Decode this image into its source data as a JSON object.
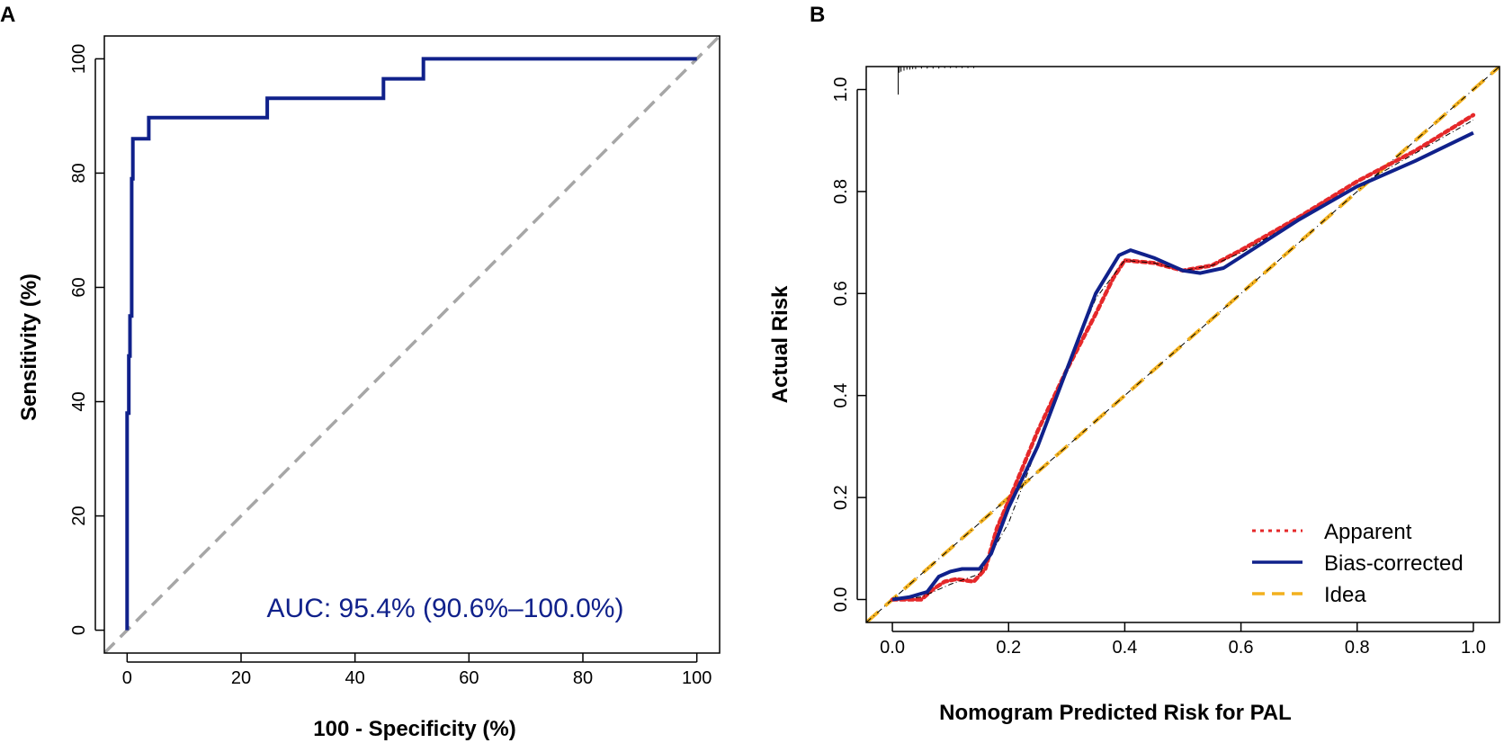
{
  "colors": {
    "roc": "#10218b",
    "diagonal": "#a6a6a6",
    "apparent": "#e5282a",
    "bias_corrected": "#10218b",
    "ideal": "#f2b01e",
    "axis": "#000000"
  },
  "chart_data": [
    {
      "panel": "A",
      "type": "line",
      "subtype": "roc",
      "xlabel": "100 - Specificity (%)",
      "ylabel": "Sensitivity (%)",
      "xlim": [
        -4,
        104
      ],
      "ylim": [
        -4,
        104
      ],
      "xticks": [
        "0",
        "20",
        "40",
        "60",
        "80",
        "100"
      ],
      "yticks": [
        "0",
        "20",
        "40",
        "60",
        "80",
        "100"
      ],
      "annotation": "AUC: 95.4% (90.6%–100.0%)",
      "series": [
        {
          "name": "ROC",
          "x": [
            0,
            0,
            0.3,
            0.3,
            0.5,
            0.5,
            0.8,
            0.8,
            1,
            1,
            1,
            3.8,
            3.8,
            24.6,
            24.6,
            45,
            45,
            52,
            52,
            100
          ],
          "y": [
            0,
            38,
            38,
            48,
            48,
            55,
            55,
            79,
            79,
            82,
            86,
            86,
            89.7,
            89.7,
            93.1,
            93.1,
            96.5,
            96.5,
            100,
            100
          ]
        },
        {
          "name": "Reference",
          "x": [
            -4,
            104
          ],
          "y": [
            -4,
            104
          ]
        }
      ]
    },
    {
      "panel": "B",
      "type": "line",
      "subtype": "calibration",
      "xlabel": "Nomogram Predicted Risk for PAL",
      "ylabel": "Actual Risk",
      "xlim": [
        -0.045,
        1.045
      ],
      "ylim": [
        -0.045,
        1.045
      ],
      "xticks": [
        "0.0",
        "0.2",
        "0.4",
        "0.6",
        "0.8",
        "1.0"
      ],
      "yticks": [
        "0.0",
        "0.2",
        "0.4",
        "0.6",
        "0.8",
        "1.0"
      ],
      "legend_position": "bottom-right",
      "legend": [
        "Apparent",
        "Bias-corrected",
        "Idea"
      ],
      "series": [
        {
          "name": "Apparent",
          "x": [
            0.0,
            0.05,
            0.07,
            0.09,
            0.11,
            0.14,
            0.16,
            0.18,
            0.21,
            0.25,
            0.3,
            0.35,
            0.38,
            0.4,
            0.45,
            0.5,
            0.55,
            0.6,
            0.7,
            0.8,
            0.9,
            1.0
          ],
          "y": [
            0.0,
            0.0,
            0.02,
            0.035,
            0.04,
            0.035,
            0.06,
            0.14,
            0.22,
            0.33,
            0.45,
            0.56,
            0.63,
            0.665,
            0.66,
            0.645,
            0.655,
            0.685,
            0.75,
            0.82,
            0.88,
            0.95
          ]
        },
        {
          "name": "Bias-corrected",
          "x": [
            0.0,
            0.03,
            0.06,
            0.08,
            0.1,
            0.12,
            0.15,
            0.17,
            0.2,
            0.25,
            0.3,
            0.35,
            0.39,
            0.41,
            0.45,
            0.5,
            0.53,
            0.57,
            0.7,
            0.8,
            0.9,
            1.0
          ],
          "y": [
            0.0,
            0.005,
            0.015,
            0.045,
            0.055,
            0.06,
            0.06,
            0.09,
            0.18,
            0.3,
            0.45,
            0.6,
            0.675,
            0.685,
            0.67,
            0.645,
            0.64,
            0.65,
            0.745,
            0.81,
            0.86,
            0.915
          ]
        },
        {
          "name": "Idea",
          "x": [
            -0.045,
            1.045
          ],
          "y": [
            -0.045,
            1.045
          ]
        },
        {
          "name": "Loess reference",
          "x": [
            0.0,
            0.05,
            0.1,
            0.15,
            0.2,
            0.25,
            0.3,
            0.35,
            0.4,
            0.45,
            0.5,
            0.55,
            0.6,
            0.7,
            0.8,
            0.9,
            1.0
          ],
          "y": [
            0.0,
            0.005,
            0.03,
            0.05,
            0.15,
            0.3,
            0.45,
            0.59,
            0.665,
            0.66,
            0.645,
            0.655,
            0.68,
            0.745,
            0.81,
            0.875,
            0.94
          ]
        }
      ]
    }
  ],
  "panel_labels": [
    "A",
    "B"
  ],
  "rug": {
    "panel": "B",
    "x": [
      0.01,
      0.012,
      0.015,
      0.02,
      0.025,
      0.03,
      0.035,
      0.04,
      0.05,
      0.06,
      0.07,
      0.08,
      0.09,
      0.1,
      0.11,
      0.12,
      0.13,
      0.14
    ],
    "heights": [
      0.055,
      0.012,
      0.01,
      0.008,
      0.006,
      0.006,
      0.005,
      0.005,
      0.004,
      0.004,
      0.004,
      0.004,
      0.003,
      0.003,
      0.003,
      0.003,
      0.003,
      0.003
    ]
  }
}
